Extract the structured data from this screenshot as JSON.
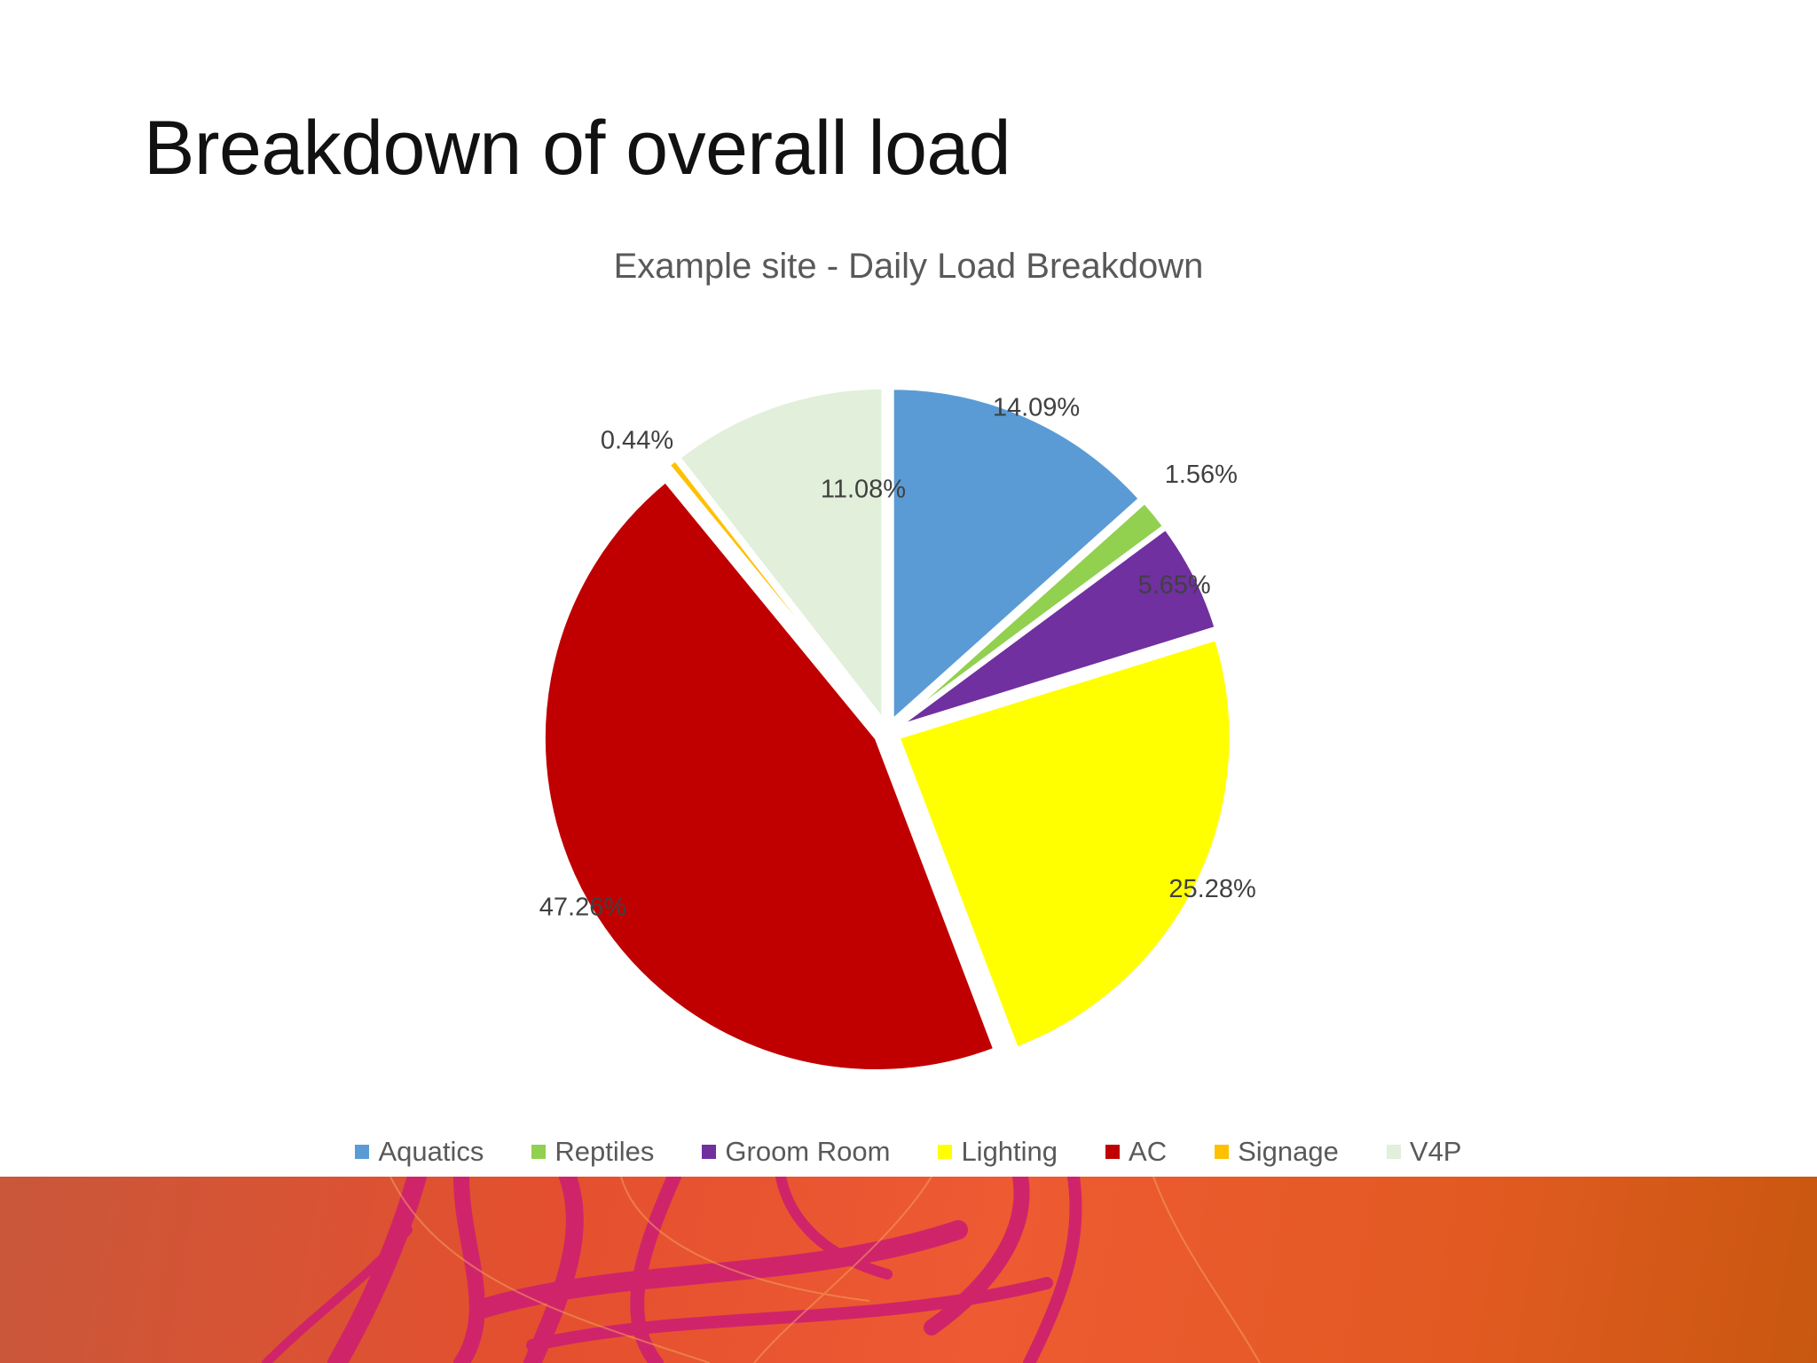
{
  "slide": {
    "title": "Breakdown of overall load"
  },
  "chart_data": {
    "type": "pie",
    "title": "Example site - Daily Load Breakdown",
    "legend_position": "bottom",
    "categories": [
      "Aquatics",
      "Reptiles",
      "Groom Room",
      "Lighting",
      "AC",
      "Signage",
      "V4P"
    ],
    "values": [
      14.09,
      1.56,
      5.65,
      25.28,
      47.26,
      0.44,
      11.08
    ],
    "labels": [
      "14.09%",
      "1.56%",
      "5.65%",
      "25.28%",
      "47.26%",
      "0.44%",
      "11.08%"
    ],
    "colors": [
      "#5b9bd5",
      "#92d050",
      "#7030a0",
      "#ffff00",
      "#c00000",
      "#ffc000",
      "#e2efda"
    ]
  }
}
